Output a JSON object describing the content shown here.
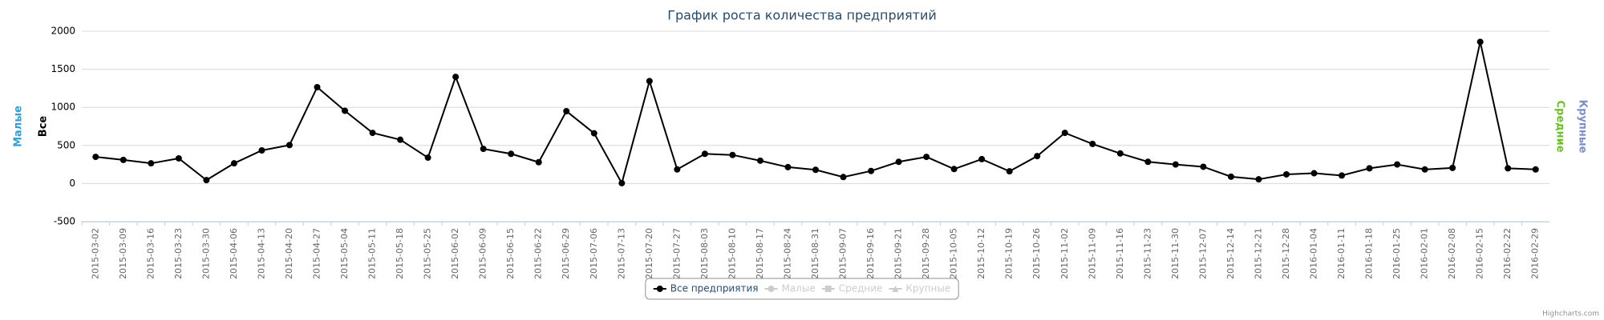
{
  "chart_data": {
    "type": "line",
    "title": "График роста количества предприятий",
    "credits": "Highcharts.com",
    "categories": [
      "2015-03-02",
      "2015-03-09",
      "2015-03-16",
      "2015-03-23",
      "2015-03-30",
      "2015-04-06",
      "2015-04-13",
      "2015-04-20",
      "2015-04-27",
      "2015-05-04",
      "2015-05-11",
      "2015-05-18",
      "2015-05-25",
      "2015-06-02",
      "2015-06-09",
      "2015-06-15",
      "2015-06-22",
      "2015-06-29",
      "2015-07-06",
      "2015-07-13",
      "2015-07-20",
      "2015-07-27",
      "2015-08-03",
      "2015-08-10",
      "2015-08-17",
      "2015-08-24",
      "2015-08-31",
      "2015-09-07",
      "2015-09-16",
      "2015-09-21",
      "2015-09-28",
      "2015-10-05",
      "2015-10-12",
      "2015-10-19",
      "2015-10-26",
      "2015-11-02",
      "2015-11-09",
      "2015-11-16",
      "2015-11-23",
      "2015-11-30",
      "2015-12-07",
      "2015-12-14",
      "2015-12-21",
      "2015-12-28",
      "2016-01-04",
      "2016-01-11",
      "2016-01-18",
      "2016-01-25",
      "2016-02-01",
      "2016-02-08",
      "2016-02-15",
      "2016-02-22",
      "2016-02-29"
    ],
    "series": [
      {
        "name": "Все предприятия",
        "color": "#000000",
        "marker": "circle",
        "visible": true,
        "values": [
          350,
          310,
          265,
          330,
          45,
          265,
          435,
          505,
          1265,
          955,
          665,
          575,
          340,
          1400,
          455,
          390,
          280,
          950,
          660,
          5,
          1345,
          185,
          390,
          375,
          300,
          215,
          180,
          85,
          165,
          285,
          350,
          190,
          320,
          160,
          360,
          665,
          520,
          395,
          285,
          250,
          220,
          90,
          55,
          120,
          135,
          105,
          200,
          250,
          185,
          205,
          1860,
          200,
          185
        ]
      },
      {
        "name": "Малые",
        "color": "#2f9fd8",
        "marker": "circle",
        "visible": false
      },
      {
        "name": "Средние",
        "color": "#6cbf2a",
        "marker": "square",
        "visible": false
      },
      {
        "name": "Крупные",
        "color": "#7a8fc8",
        "marker": "triangle",
        "visible": false
      }
    ],
    "y_axes": [
      {
        "title": "Малые",
        "color": "#2f9fd8",
        "side": "left"
      },
      {
        "title": "Все",
        "color": "#000000",
        "side": "left"
      },
      {
        "title": "Средние",
        "color": "#6cbf2a",
        "side": "right"
      },
      {
        "title": "Крупные",
        "color": "#7a8fc8",
        "side": "right"
      }
    ],
    "ylim": [
      -500,
      2000
    ],
    "yticks": [
      -500,
      0,
      500,
      1000,
      1500,
      2000
    ],
    "grid": true,
    "legend": "bottom"
  }
}
